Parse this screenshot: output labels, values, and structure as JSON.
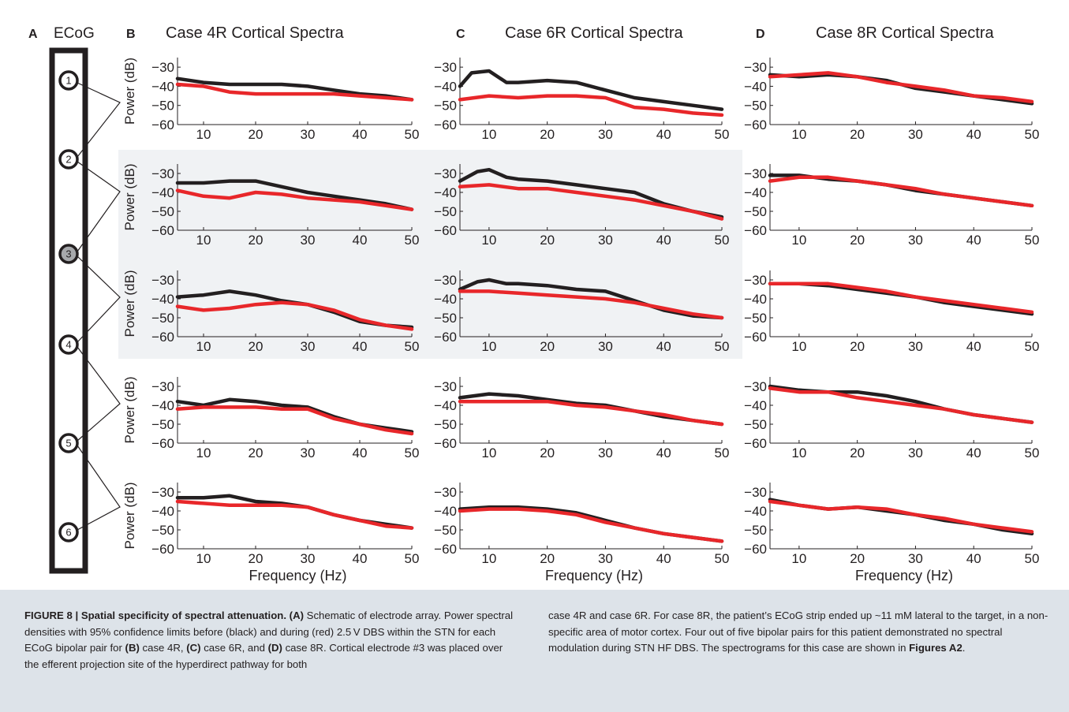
{
  "figure": {
    "panel_letters": [
      "A",
      "B",
      "C",
      "D"
    ],
    "ecog_title": "ECoG",
    "electrodes": [
      "1",
      "2",
      "3",
      "4",
      "5",
      "6"
    ],
    "highlighted_electrode": "3",
    "panel_titles": [
      "Case 4R Cortical Spectra",
      "Case 6R Cortical Spectra",
      "Case 8R Cortical Spectra"
    ],
    "ylabel": "Power (dB)",
    "xlabel": "Frequency (Hz)",
    "colors": {
      "before": "#231f20",
      "during": "#e8272a",
      "highlight_bg": "#f0f2f4",
      "caption_bg": "#dde3e9"
    }
  },
  "chart_data": {
    "type": "line",
    "xlim": [
      5,
      50
    ],
    "ylim": [
      -60,
      -25
    ],
    "xticks": [
      10,
      20,
      30,
      40,
      50
    ],
    "yticks": [
      -30,
      -40,
      -50,
      -60
    ],
    "series_names": [],
    "cases": [
      {
        "case": "4R",
        "rows": [
          {
            "pair": "1-2",
            "before": {
              "x": [
                5,
                10,
                15,
                20,
                25,
                30,
                35,
                40,
                45,
                50
              ],
              "y": [
                -36,
                -38,
                -39,
                -39,
                -39,
                -40,
                -42,
                -44,
                -45,
                -47
              ]
            },
            "during": {
              "x": [
                5,
                10,
                15,
                20,
                25,
                30,
                35,
                40,
                45,
                50
              ],
              "y": [
                -39,
                -40,
                -43,
                -44,
                -44,
                -44,
                -44,
                -45,
                -46,
                -47
              ]
            }
          },
          {
            "pair": "2-3",
            "before": {
              "x": [
                5,
                10,
                15,
                20,
                25,
                30,
                35,
                40,
                45,
                50
              ],
              "y": [
                -35,
                -35,
                -34,
                -34,
                -37,
                -40,
                -42,
                -44,
                -46,
                -49
              ]
            },
            "during": {
              "x": [
                5,
                10,
                15,
                20,
                25,
                30,
                35,
                40,
                45,
                50
              ],
              "y": [
                -39,
                -42,
                -43,
                -40,
                -41,
                -43,
                -44,
                -45,
                -47,
                -49
              ]
            }
          },
          {
            "pair": "3-4",
            "before": {
              "x": [
                5,
                10,
                15,
                20,
                25,
                30,
                35,
                40,
                45,
                50
              ],
              "y": [
                -39,
                -38,
                -36,
                -38,
                -41,
                -43,
                -47,
                -52,
                -54,
                -55
              ]
            },
            "during": {
              "x": [
                5,
                10,
                15,
                20,
                25,
                30,
                35,
                40,
                45,
                50
              ],
              "y": [
                -44,
                -46,
                -45,
                -43,
                -42,
                -43,
                -46,
                -51,
                -54,
                -56
              ]
            }
          },
          {
            "pair": "4-5",
            "before": {
              "x": [
                5,
                10,
                15,
                20,
                25,
                30,
                35,
                40,
                45,
                50
              ],
              "y": [
                -38,
                -40,
                -37,
                -38,
                -40,
                -41,
                -46,
                -50,
                -52,
                -54
              ]
            },
            "during": {
              "x": [
                5,
                10,
                15,
                20,
                25,
                30,
                35,
                40,
                45,
                50
              ],
              "y": [
                -42,
                -41,
                -41,
                -41,
                -42,
                -42,
                -47,
                -50,
                -53,
                -55
              ]
            }
          },
          {
            "pair": "5-6",
            "before": {
              "x": [
                5,
                10,
                15,
                20,
                25,
                30,
                35,
                40,
                45,
                50
              ],
              "y": [
                -33,
                -33,
                -32,
                -35,
                -36,
                -38,
                -42,
                -45,
                -47,
                -49
              ]
            },
            "during": {
              "x": [
                5,
                10,
                15,
                20,
                25,
                30,
                35,
                40,
                45,
                50
              ],
              "y": [
                -35,
                -36,
                -37,
                -37,
                -37,
                -38,
                -42,
                -45,
                -48,
                -49
              ]
            }
          }
        ]
      },
      {
        "case": "6R",
        "rows": [
          {
            "pair": "1-2",
            "before": {
              "x": [
                5,
                7,
                10,
                13,
                15,
                20,
                25,
                30,
                35,
                40,
                45,
                50
              ],
              "y": [
                -40,
                -33,
                -32,
                -38,
                -38,
                -37,
                -38,
                -42,
                -46,
                -48,
                -50,
                -52
              ]
            },
            "during": {
              "x": [
                5,
                10,
                15,
                20,
                25,
                30,
                35,
                40,
                45,
                50
              ],
              "y": [
                -47,
                -45,
                -46,
                -45,
                -45,
                -46,
                -51,
                -52,
                -54,
                -55
              ]
            }
          },
          {
            "pair": "2-3",
            "before": {
              "x": [
                5,
                8,
                10,
                13,
                15,
                20,
                25,
                30,
                35,
                40,
                45,
                50
              ],
              "y": [
                -34,
                -29,
                -28,
                -32,
                -33,
                -34,
                -36,
                -38,
                -40,
                -46,
                -50,
                -53
              ]
            },
            "during": {
              "x": [
                5,
                10,
                15,
                20,
                25,
                30,
                35,
                40,
                45,
                50
              ],
              "y": [
                -37,
                -36,
                -38,
                -38,
                -40,
                -42,
                -44,
                -47,
                -50,
                -54
              ]
            }
          },
          {
            "pair": "3-4",
            "before": {
              "x": [
                5,
                8,
                10,
                13,
                15,
                20,
                25,
                30,
                35,
                40,
                45,
                50
              ],
              "y": [
                -35,
                -31,
                -30,
                -32,
                -32,
                -33,
                -35,
                -36,
                -41,
                -46,
                -49,
                -50
              ]
            },
            "during": {
              "x": [
                5,
                10,
                15,
                20,
                25,
                30,
                35,
                40,
                45,
                50
              ],
              "y": [
                -36,
                -36,
                -37,
                -38,
                -39,
                -40,
                -42,
                -45,
                -48,
                -50
              ]
            }
          },
          {
            "pair": "4-5",
            "before": {
              "x": [
                5,
                10,
                15,
                20,
                25,
                30,
                35,
                40,
                45,
                50
              ],
              "y": [
                -36,
                -34,
                -35,
                -37,
                -39,
                -40,
                -43,
                -46,
                -48,
                -50
              ]
            },
            "during": {
              "x": [
                5,
                10,
                15,
                20,
                25,
                30,
                35,
                40,
                45,
                50
              ],
              "y": [
                -38,
                -38,
                -38,
                -38,
                -40,
                -41,
                -43,
                -45,
                -48,
                -50
              ]
            }
          },
          {
            "pair": "5-6",
            "before": {
              "x": [
                5,
                10,
                15,
                20,
                25,
                30,
                35,
                40,
                45,
                50
              ],
              "y": [
                -39,
                -38,
                -38,
                -39,
                -41,
                -45,
                -49,
                -52,
                -54,
                -56
              ]
            },
            "during": {
              "x": [
                5,
                10,
                15,
                20,
                25,
                30,
                35,
                40,
                45,
                50
              ],
              "y": [
                -40,
                -39,
                -39,
                -40,
                -42,
                -46,
                -49,
                -52,
                -54,
                -56
              ]
            }
          }
        ]
      },
      {
        "case": "8R",
        "rows": [
          {
            "pair": "1-2",
            "before": {
              "x": [
                5,
                10,
                15,
                20,
                25,
                30,
                35,
                40,
                45,
                50
              ],
              "y": [
                -34,
                -35,
                -34,
                -35,
                -37,
                -41,
                -43,
                -45,
                -47,
                -49
              ]
            },
            "during": {
              "x": [
                5,
                10,
                15,
                20,
                25,
                30,
                35,
                40,
                45,
                50
              ],
              "y": [
                -35,
                -34,
                -33,
                -35,
                -38,
                -40,
                -42,
                -45,
                -46,
                -48
              ]
            }
          },
          {
            "pair": "2-3",
            "before": {
              "x": [
                5,
                10,
                15,
                20,
                25,
                30,
                35,
                40,
                45,
                50
              ],
              "y": [
                -31,
                -31,
                -33,
                -34,
                -36,
                -39,
                -41,
                -43,
                -45,
                -47
              ]
            },
            "during": {
              "x": [
                5,
                10,
                15,
                20,
                25,
                30,
                35,
                40,
                45,
                50
              ],
              "y": [
                -34,
                -32,
                -32,
                -34,
                -36,
                -38,
                -41,
                -43,
                -45,
                -47
              ]
            }
          },
          {
            "pair": "3-4",
            "before": {
              "x": [
                5,
                10,
                15,
                20,
                25,
                30,
                35,
                40,
                45,
                50
              ],
              "y": [
                -32,
                -32,
                -33,
                -35,
                -37,
                -39,
                -42,
                -44,
                -46,
                -48
              ]
            },
            "during": {
              "x": [
                5,
                10,
                15,
                20,
                25,
                30,
                35,
                40,
                45,
                50
              ],
              "y": [
                -32,
                -32,
                -32,
                -34,
                -36,
                -39,
                -41,
                -43,
                -45,
                -47
              ]
            }
          },
          {
            "pair": "4-5",
            "before": {
              "x": [
                5,
                10,
                15,
                20,
                25,
                30,
                35,
                40,
                45,
                50
              ],
              "y": [
                -30,
                -32,
                -33,
                -33,
                -35,
                -38,
                -42,
                -45,
                -47,
                -49
              ]
            },
            "during": {
              "x": [
                5,
                10,
                15,
                20,
                25,
                30,
                35,
                40,
                45,
                50
              ],
              "y": [
                -31,
                -33,
                -33,
                -36,
                -38,
                -40,
                -42,
                -45,
                -47,
                -49
              ]
            }
          },
          {
            "pair": "5-6",
            "before": {
              "x": [
                5,
                10,
                15,
                20,
                25,
                30,
                35,
                40,
                45,
                50
              ],
              "y": [
                -34,
                -37,
                -39,
                -38,
                -40,
                -42,
                -45,
                -47,
                -50,
                -52
              ]
            },
            "during": {
              "x": [
                5,
                10,
                15,
                20,
                25,
                30,
                35,
                40,
                45,
                50
              ],
              "y": [
                -35,
                -37,
                -39,
                -38,
                -39,
                -42,
                -44,
                -47,
                -49,
                -51
              ]
            }
          }
        ]
      }
    ]
  },
  "caption": {
    "label": "FIGURE 8 | Spatial specificity of spectral attenuation.",
    "left": {
      "p1": "(A)",
      "t1": " Schematic of electrode array. Power spectral densities with 95% confidence limits before (black) and during (red) 2.5 V DBS within the STN for each ECoG bipolar pair for ",
      "b2": "(B)",
      "t2": " case 4R, ",
      "b3": "(C)",
      "t3": " case 6R, and ",
      "b4": "(D)",
      "t4": " case 8R. Cortical electrode #3 was placed over the efferent projection site of the hyperdirect pathway for both"
    },
    "right": {
      "t1": "case 4R and case 6R. For case 8R, the patient’s ECoG strip ended up ~11 mM lateral to the target, in a non-specific area of motor cortex. Four out of five bipolar pairs for this patient demonstrated no spectral modulation during STN HF DBS. The spectrograms for this case are shown in ",
      "b1": "Figures A2",
      "t2": "."
    }
  }
}
